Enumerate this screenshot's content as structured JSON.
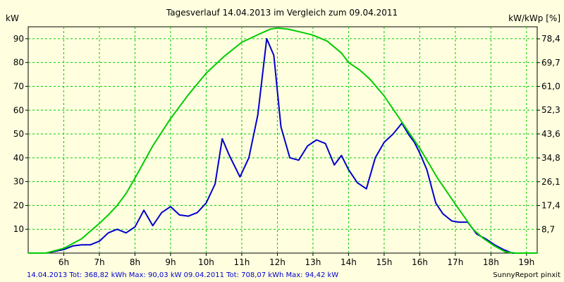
{
  "chart_data": {
    "type": "line",
    "title": "Tagesverlauf 14.04.2013 im Vergleich zum 09.04.2011",
    "ylabel": "kW",
    "y2label": "kW/kWp [%]",
    "xlabel": "",
    "xlim": [
      5.0,
      19.3
    ],
    "ylim": [
      0,
      95
    ],
    "x_ticks": [
      {
        "value": 6,
        "label": "6h"
      },
      {
        "value": 7,
        "label": "7h"
      },
      {
        "value": 8,
        "label": "8h"
      },
      {
        "value": 9,
        "label": "9h"
      },
      {
        "value": 10,
        "label": "10h"
      },
      {
        "value": 11,
        "label": "11h"
      },
      {
        "value": 12,
        "label": "12h"
      },
      {
        "value": 13,
        "label": "13h"
      },
      {
        "value": 14,
        "label": "14h"
      },
      {
        "value": 15,
        "label": "15h"
      },
      {
        "value": 16,
        "label": "16h"
      },
      {
        "value": 17,
        "label": "17h"
      },
      {
        "value": 18,
        "label": "18h"
      },
      {
        "value": 19,
        "label": "19h"
      }
    ],
    "y_ticks": [
      {
        "value": 10,
        "label": "10"
      },
      {
        "value": 20,
        "label": "20"
      },
      {
        "value": 30,
        "label": "30"
      },
      {
        "value": 40,
        "label": "40"
      },
      {
        "value": 50,
        "label": "50"
      },
      {
        "value": 60,
        "label": "60"
      },
      {
        "value": 70,
        "label": "70"
      },
      {
        "value": 80,
        "label": "80"
      },
      {
        "value": 90,
        "label": "90"
      }
    ],
    "y2_ticks": [
      {
        "value": 8.7,
        "label": "8,7"
      },
      {
        "value": 17.4,
        "label": "17,4"
      },
      {
        "value": 26.1,
        "label": "26,1"
      },
      {
        "value": 34.8,
        "label": "34,8"
      },
      {
        "value": 43.6,
        "label": "43,6"
      },
      {
        "value": 52.3,
        "label": "52,3"
      },
      {
        "value": 61.0,
        "label": "61,0"
      },
      {
        "value": 69.7,
        "label": "69,7"
      },
      {
        "value": 78.4,
        "label": "78,4"
      }
    ],
    "y2lim": [
      0,
      82.8
    ],
    "grid": true,
    "grid_color": "#00cc00",
    "series": [
      {
        "color": "#0000cc",
        "x": [
          5.0,
          5.5,
          6.0,
          6.25,
          6.5,
          6.75,
          7.0,
          7.25,
          7.5,
          7.75,
          8.0,
          8.25,
          8.5,
          8.75,
          9.0,
          9.25,
          9.5,
          9.75,
          10.0,
          10.25,
          10.45,
          10.65,
          10.95,
          11.2,
          11.45,
          11.7,
          11.9,
          12.1,
          12.35,
          12.6,
          12.85,
          13.1,
          13.35,
          13.6,
          13.8,
          14.0,
          14.25,
          14.5,
          14.75,
          15.0,
          15.25,
          15.5,
          15.7,
          15.85,
          16.0,
          16.2,
          16.45,
          16.65,
          16.9,
          17.1,
          17.35,
          17.6,
          17.85,
          18.1,
          18.35,
          18.6,
          18.85,
          19.3
        ],
        "y": [
          0,
          0,
          1.5,
          3,
          3.5,
          3.5,
          5,
          8.5,
          10,
          8.5,
          11,
          18,
          11.5,
          17,
          19.5,
          16,
          15.5,
          17,
          21,
          29,
          48,
          41,
          32,
          40,
          58,
          90,
          83,
          53,
          40,
          39,
          45,
          47.5,
          46,
          37,
          41,
          35,
          29.5,
          27,
          40,
          46.5,
          50,
          54.5,
          49.5,
          46.5,
          42,
          35,
          21,
          16.5,
          13.5,
          13,
          13,
          8,
          6,
          3.5,
          1.5,
          0,
          0,
          0
        ]
      },
      {
        "color": "#00cc00",
        "x": [
          5.0,
          5.5,
          6.0,
          6.5,
          7.0,
          7.25,
          7.5,
          7.75,
          8.0,
          8.5,
          9.0,
          9.5,
          10.0,
          10.5,
          11.0,
          11.5,
          11.8,
          12.0,
          12.3,
          12.6,
          13.0,
          13.4,
          13.8,
          14.0,
          14.3,
          14.6,
          15.0,
          15.5,
          16.0,
          16.5,
          17.0,
          17.5,
          17.8,
          18.1,
          18.4,
          18.7,
          19.0,
          19.3
        ],
        "y": [
          0,
          0,
          2,
          6,
          12.5,
          16,
          20,
          25,
          31.5,
          45,
          56.5,
          66.5,
          75.5,
          82.5,
          88.5,
          92,
          94,
          94.5,
          94,
          93,
          91.5,
          89,
          84,
          80,
          77,
          73,
          66,
          55,
          44,
          31.5,
          20.5,
          10,
          6,
          3,
          0.5,
          0,
          0,
          0
        ]
      }
    ]
  },
  "footer": {
    "left": "14.04.2013 Tot: 368,82 kWh Max: 90,03 kW 09.04.2011 Tot: 708,07 kWh Max: 94,42 kW",
    "right": "SunnyReport pinxit",
    "left_color": "#0000cc"
  }
}
